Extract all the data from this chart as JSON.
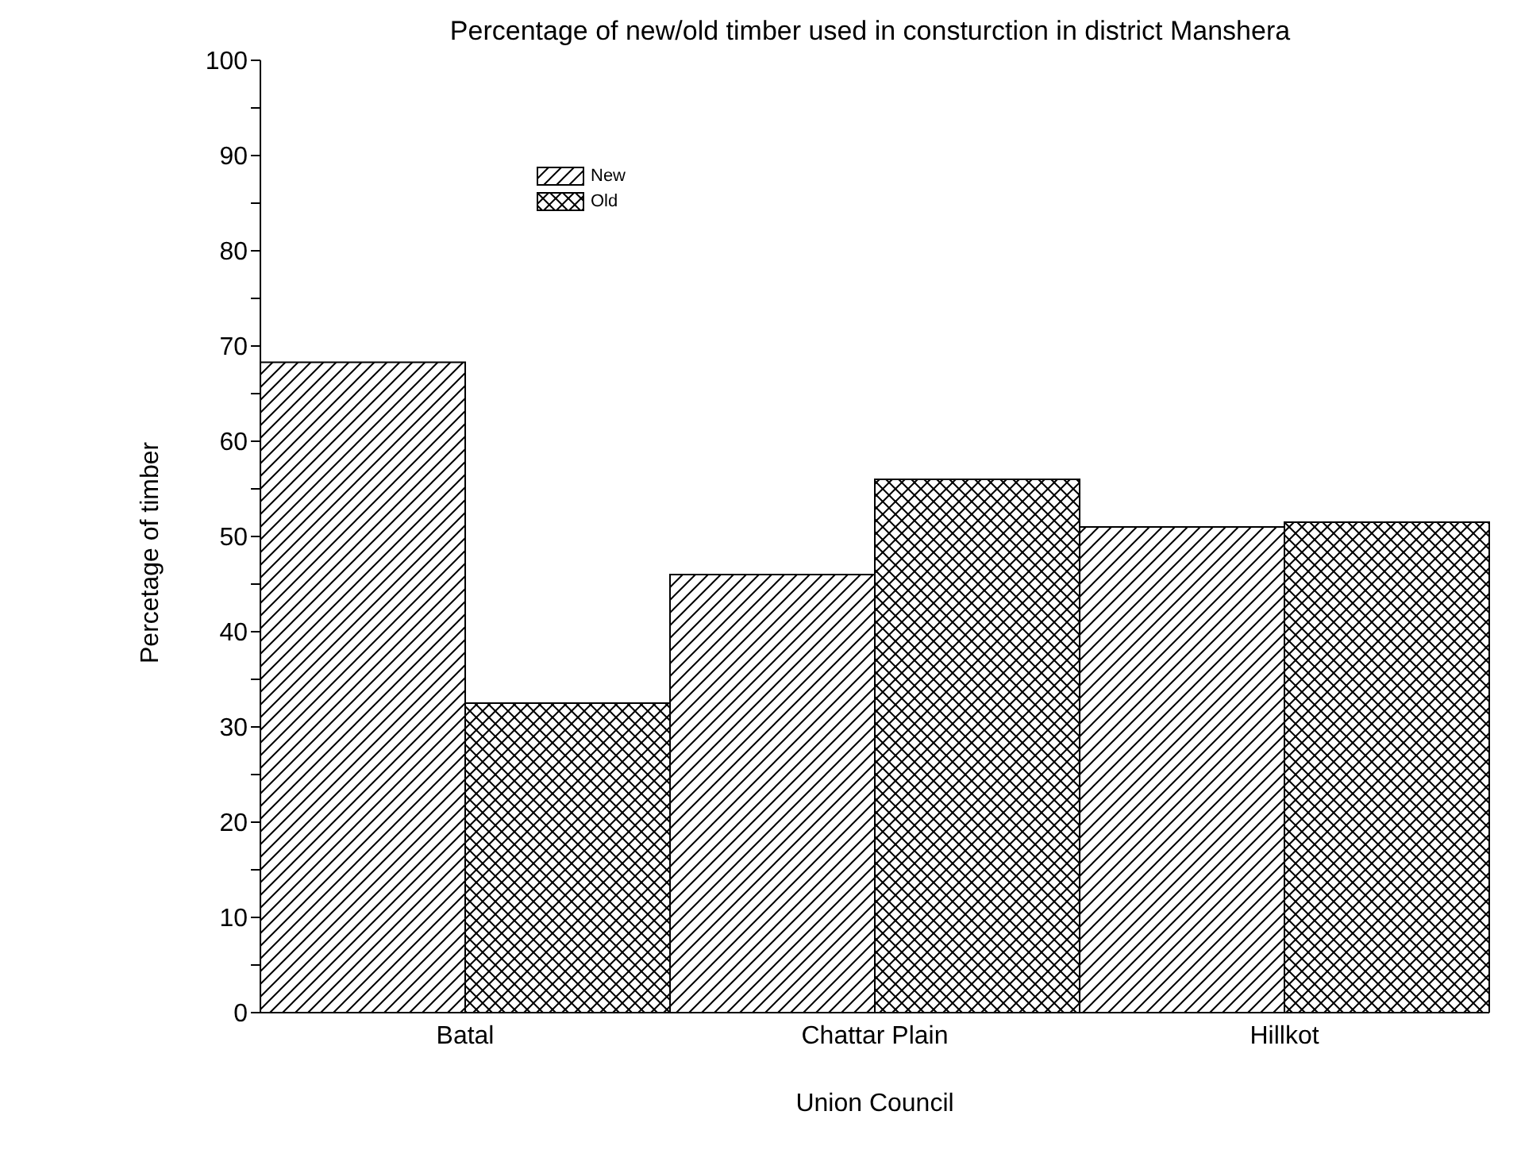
{
  "chart_data": {
    "type": "bar",
    "title": "Percentage of new/old timber used in consturction in district Manshera",
    "xlabel": "Union Council",
    "ylabel": "Percetage of timber",
    "categories": [
      "Batal",
      "Chattar Plain",
      "Hillkot"
    ],
    "series": [
      {
        "name": "New",
        "color": "#000000",
        "values": [
          68.3,
          46,
          51
        ]
      },
      {
        "name": "Old",
        "color": "#000000",
        "values": [
          32.5,
          56,
          51.5
        ]
      }
    ],
    "ylim": [
      0,
      100
    ],
    "yticks": [
      0,
      {
        "value": 5,
        "label": null
      },
      10,
      {
        "value": 15,
        "label": null
      },
      20,
      {
        "value": 25,
        "label": null
      },
      30,
      {
        "value": 35,
        "label": null
      },
      40,
      {
        "value": 45,
        "label": null
      },
      50,
      {
        "value": 55,
        "label": null
      },
      60,
      {
        "value": 65,
        "label": null
      },
      70,
      {
        "value": 75,
        "label": null
      },
      80,
      {
        "value": 85,
        "label": null
      },
      90,
      {
        "value": 95,
        "label": null
      },
      100
    ],
    "grid": false,
    "legend": "top left"
  }
}
